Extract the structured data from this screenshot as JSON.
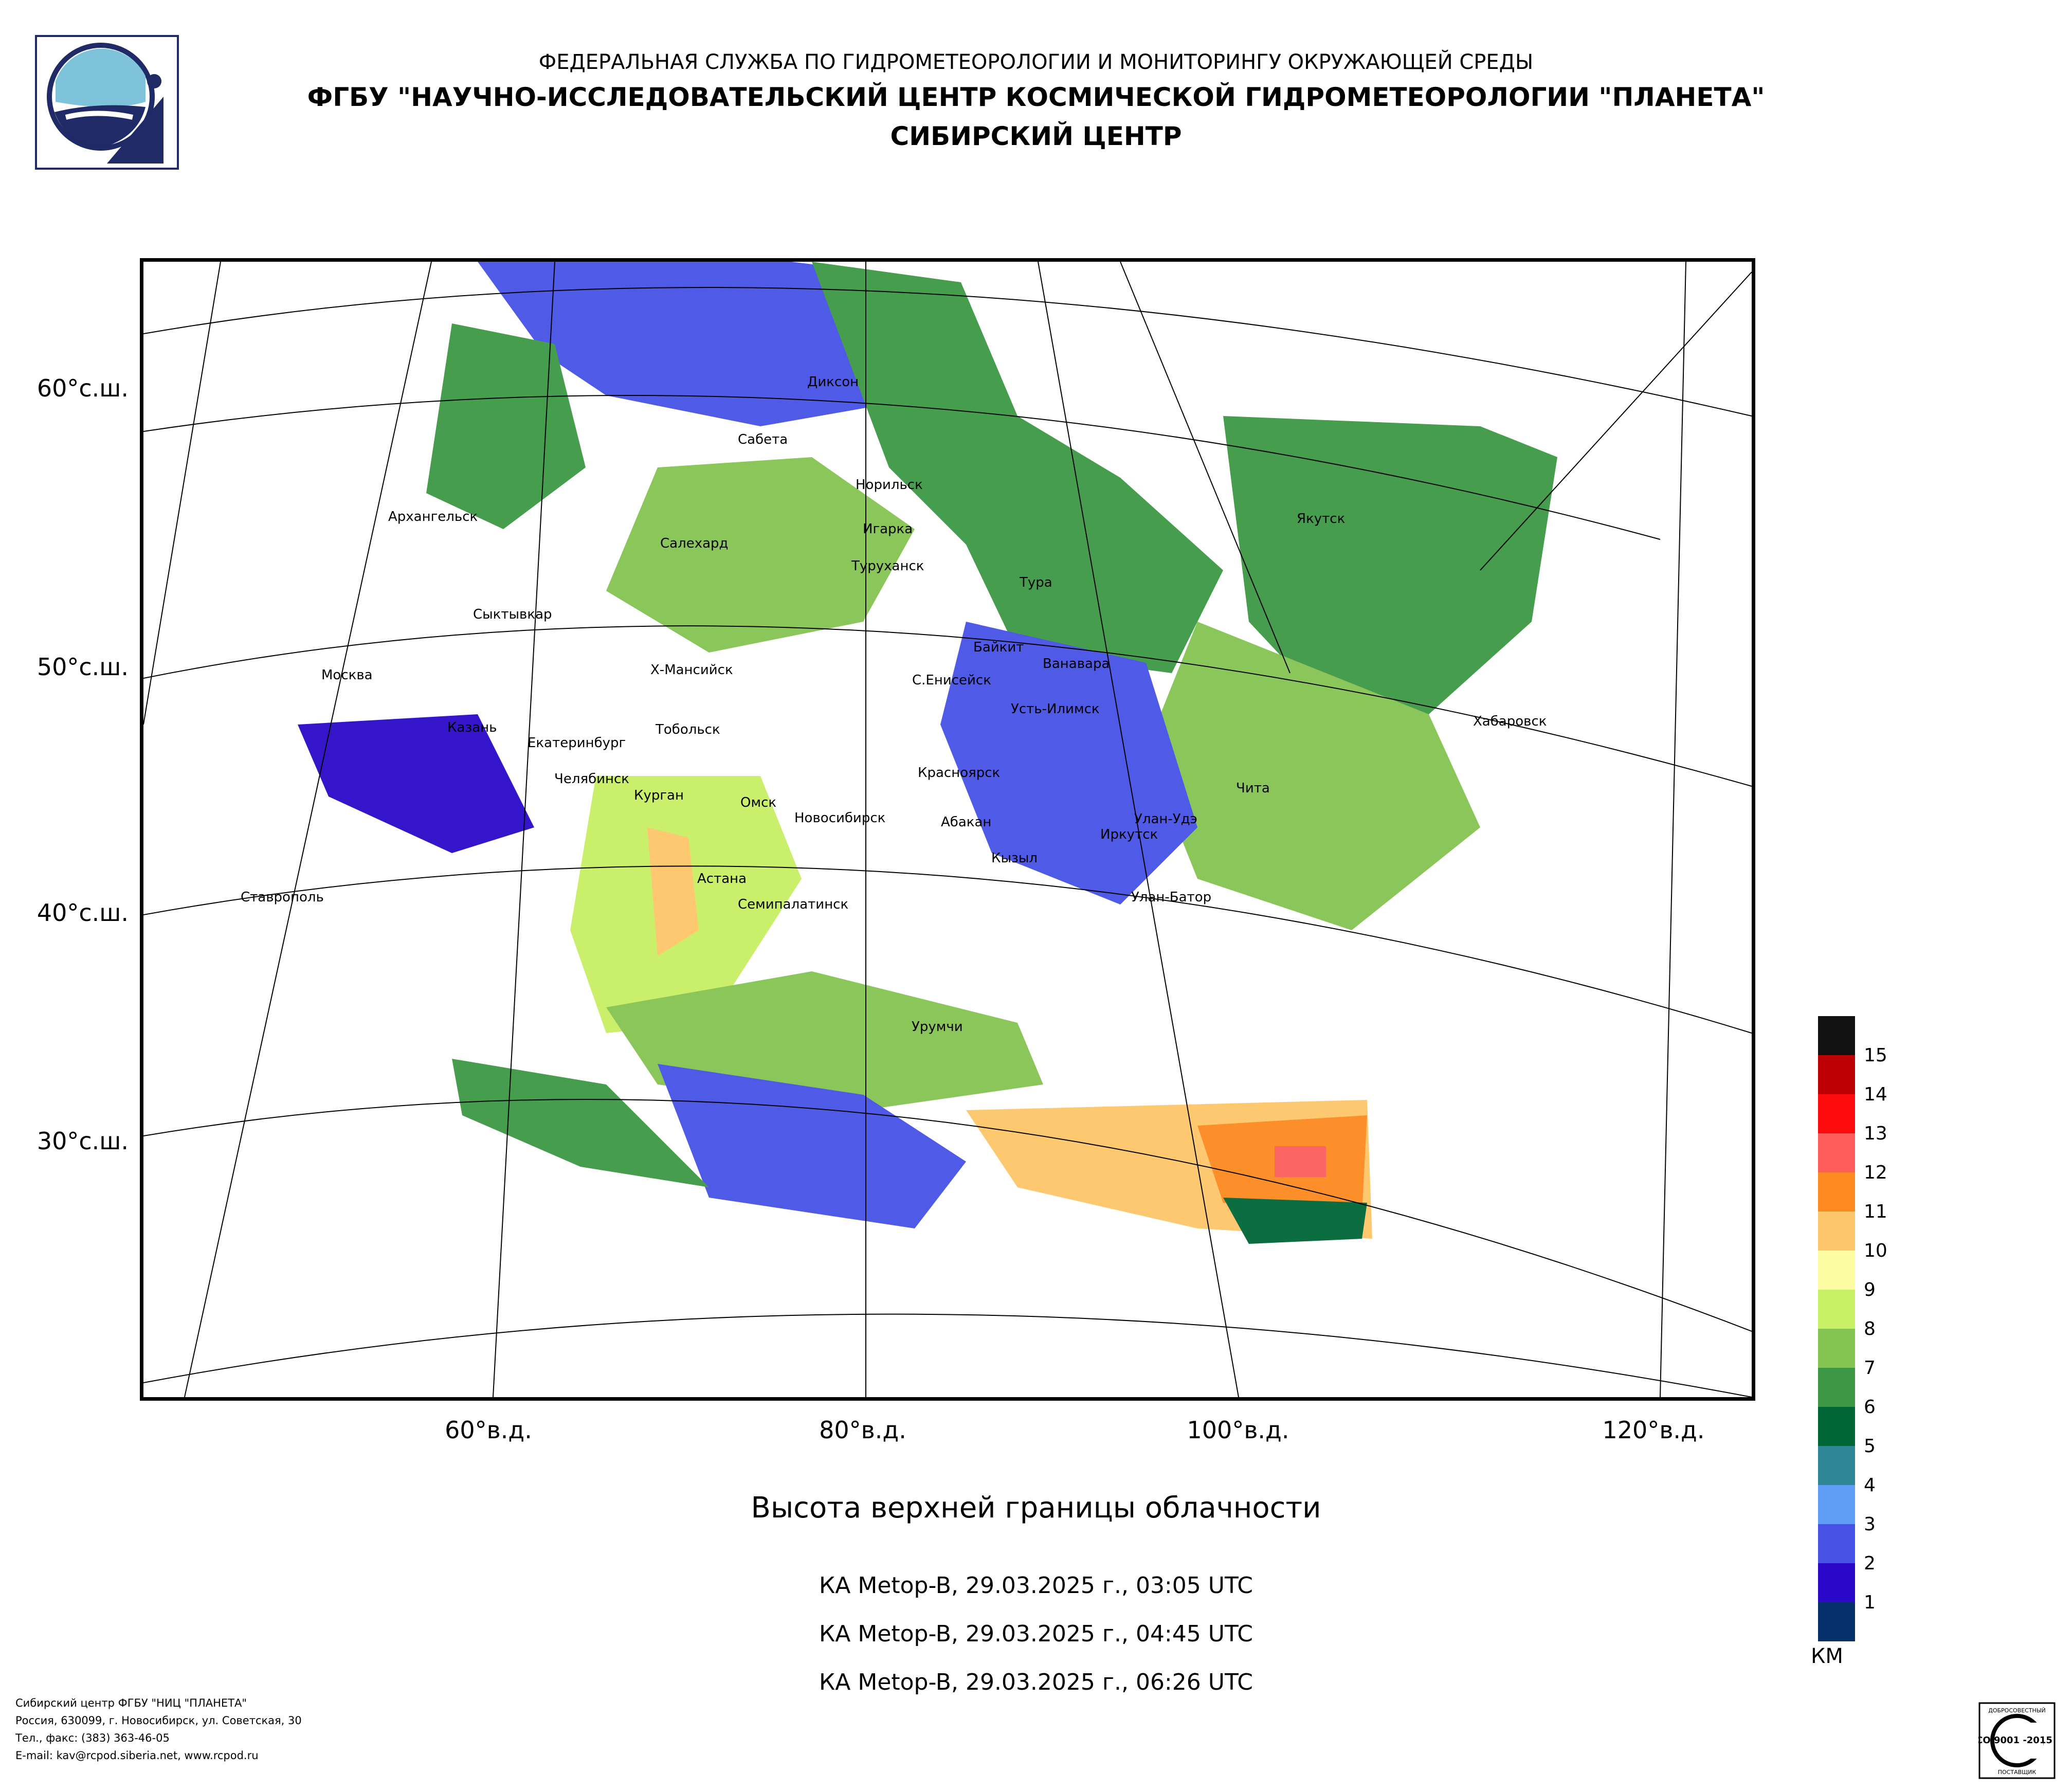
{
  "header": {
    "line1": "ФЕДЕРАЛЬНАЯ СЛУЖБА ПО ГИДРОМЕТЕОРОЛОГИИ И МОНИТОРИНГУ ОКРУЖАЮЩЕЙ СРЕДЫ",
    "line2": "ФГБУ \"НАУЧНО-ИССЛЕДОВАТЕЛЬСКИЙ ЦЕНТР КОСМИЧЕСКОЙ ГИДРОМЕТЕОРОЛОГИИ \"ПЛАНЕТА\"",
    "line3": "СИБИРСКИЙ ЦЕНТР"
  },
  "latitude_labels": [
    "60°с.ш.",
    "50°с.ш.",
    "40°с.ш.",
    "30°с.ш."
  ],
  "longitude_labels": [
    "60°в.д.",
    "80°в.д.",
    "100°в.д.",
    "120°в.д."
  ],
  "cities": [
    "Диксон",
    "Сабета",
    "Норильск",
    "Игарка",
    "Туруханск",
    "Салехард",
    "Архангельск",
    "Тура",
    "Якутск",
    "Сыктывкар",
    "Байкит",
    "Ванавара",
    "С.Енисейск",
    "Х-Мансийск",
    "Москва",
    "Усть-Илимск",
    "Хабаровск",
    "Казань",
    "Тобольск",
    "Екатеринбург",
    "Челябинск",
    "Курган",
    "Красноярск",
    "Чита",
    "Омск",
    "Новосибирск",
    "Абакан",
    "Улан-Удэ",
    "Иркутск",
    "Кызыл",
    "Астана",
    "Улан-Батор",
    "Семипалатинск",
    "Ставрополь",
    "Урумчи"
  ],
  "chart_data": {
    "type": "heatmap",
    "title": "Высота верхней границы облачности",
    "colorbar": {
      "unit": "КМ",
      "ticks": [
        1,
        2,
        3,
        4,
        5,
        6,
        7,
        8,
        9,
        10,
        11,
        12,
        13,
        14,
        15
      ],
      "colors": [
        "#06306a",
        "#2a09c8",
        "#4652e6",
        "#5f9ef6",
        "#2f8694",
        "#006636",
        "#3d9845",
        "#84c451",
        "#c8f064",
        "#fbfba2",
        "#fec66a",
        "#fd8a20",
        "#fd5d5b",
        "#fc0c0c",
        "#bd0003",
        "#111111"
      ]
    },
    "grid_labels": {
      "latitudes": [
        "60°с.ш.",
        "50°с.ш.",
        "40°с.ш.",
        "30°с.ш."
      ],
      "longitudes": [
        "60°в.д.",
        "80°в.д.",
        "100°в.д.",
        "120°в.д."
      ]
    }
  },
  "passes": [
    "КА Metop-B, 29.03.2025 г., 03:05 UTC",
    "КА Metop-B, 29.03.2025 г., 04:45 UTC",
    "КА Metop-B, 29.03.2025 г., 06:26 UTC"
  ],
  "footer": [
    "Сибирский центр ФГБУ \"НИЦ \"ПЛАНЕТА\"",
    "Россия, 630099, г. Новосибирск, ул. Советская, 30",
    "Тел., факс: (383) 363-46-05",
    "E-mail: kav@rcpod.siberia.net, www.rcpod.ru"
  ],
  "iso_badge": {
    "top": "ДОБРОСОВЕСТНЫЙ",
    "mid": "ИСО 9001 -2015",
    "bottom": "ПОСТАВЩИК"
  }
}
